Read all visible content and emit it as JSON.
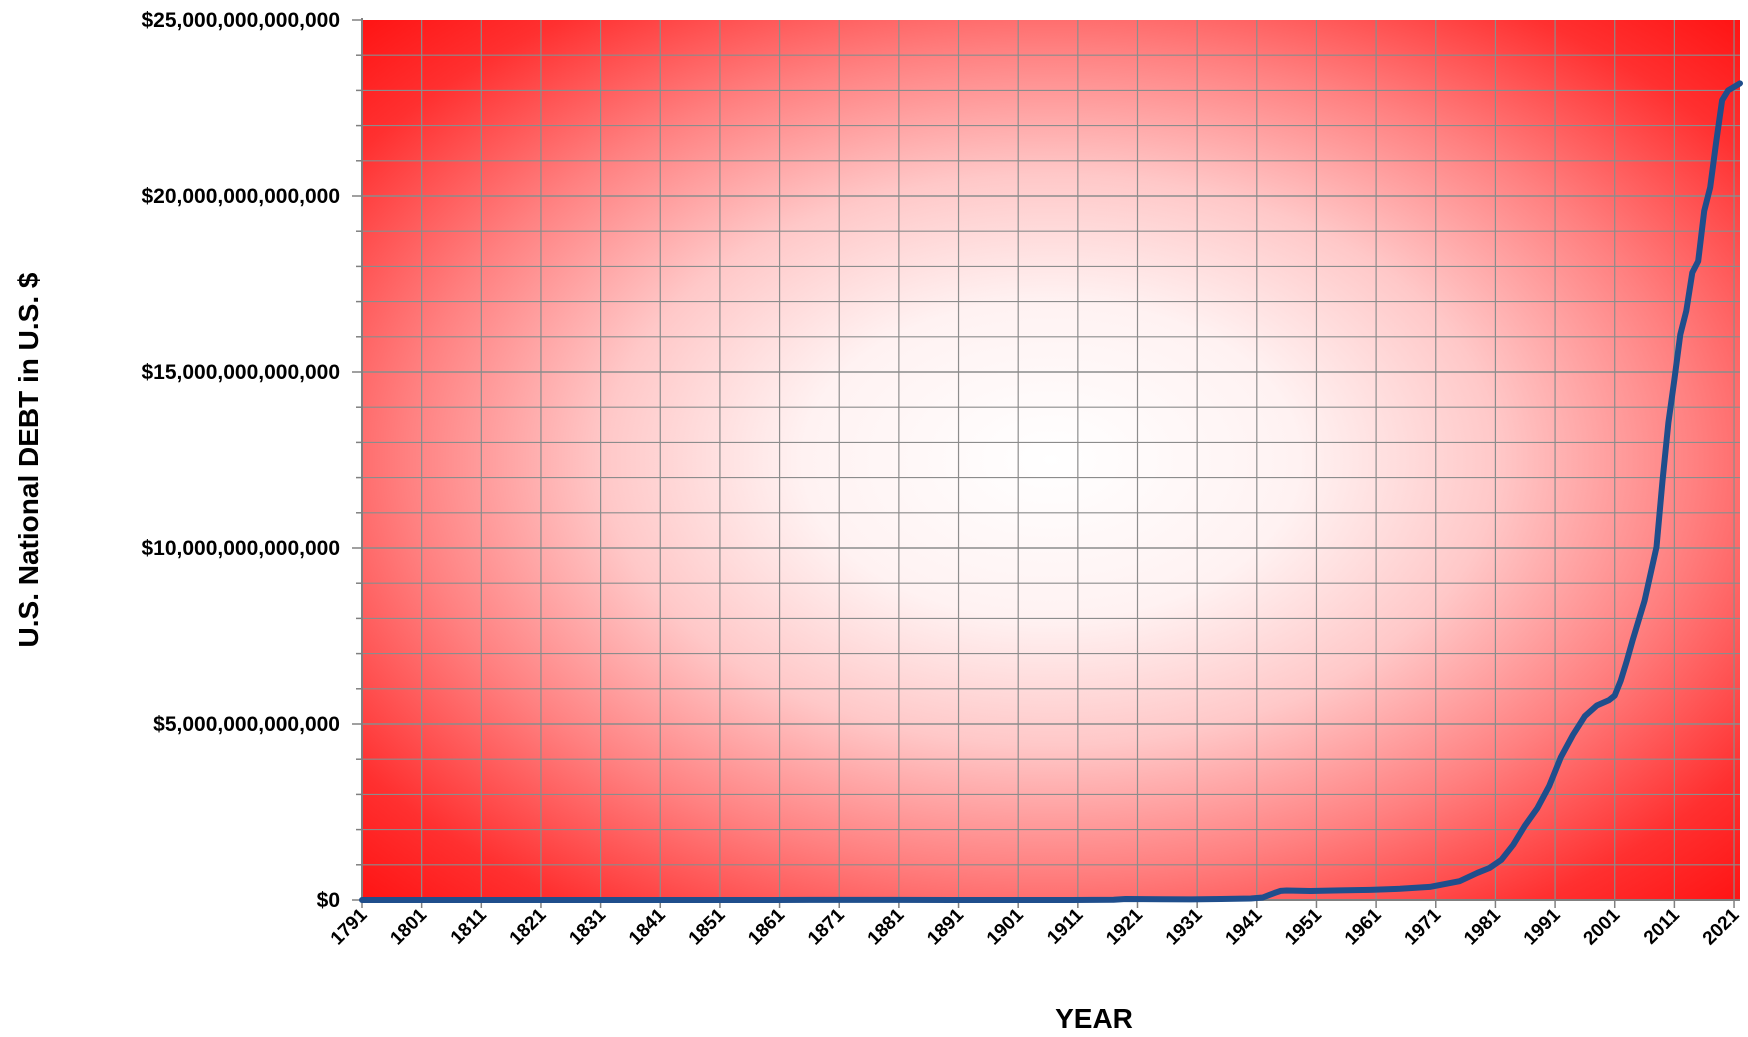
{
  "chart_data": {
    "type": "line",
    "xlabel": "YEAR",
    "ylabel": "U.S. National DEBT in U.S. $",
    "xlim": [
      1791,
      2022
    ],
    "ylim": [
      0,
      25000000000000
    ],
    "y_ticks": [
      0,
      5000000000000,
      10000000000000,
      15000000000000,
      20000000000000,
      25000000000000
    ],
    "y_tick_labels": [
      "$0",
      "$5,000,000,000,000",
      "$10,000,000,000,000",
      "$15,000,000,000,000",
      "$20,000,000,000,000",
      "$25,000,000,000,000"
    ],
    "x_tick_labels": [
      "1791",
      "1801",
      "1811",
      "1821",
      "1831",
      "1841",
      "1851",
      "1861",
      "1871",
      "1881",
      "1891",
      "1901",
      "1911",
      "1921",
      "1931",
      "1941",
      "1951",
      "1961",
      "1971",
      "1981",
      "1991",
      "2001",
      "2011",
      "2021"
    ],
    "grid": true,
    "background": "radial gradient: white center to red edges",
    "colors": {
      "line": "#1f4e8c",
      "bg_center": "#ffffff",
      "bg_edge": "#ff1a1a",
      "grid": "#8c8c8c"
    },
    "series": [
      {
        "x": [
          1791,
          1800,
          1810,
          1820,
          1830,
          1840,
          1850,
          1860,
          1866,
          1870,
          1880,
          1890,
          1900,
          1910,
          1917,
          1919,
          1925,
          1930,
          1935,
          1940,
          1942,
          1943,
          1944,
          1945,
          1946,
          1950,
          1955,
          1960,
          1965,
          1970,
          1975,
          1978,
          1980,
          1982,
          1984,
          1986,
          1988,
          1990,
          1992,
          1994,
          1996,
          1998,
          2000,
          2001,
          2002,
          2003,
          2004,
          2006,
          2008,
          2009,
          2010,
          2011,
          2012,
          2013,
          2014,
          2015,
          2016,
          2017,
          2018,
          2019,
          2020,
          2021,
          2022
        ],
        "y": [
          75000000,
          83000000,
          53000000,
          91000000,
          49000000,
          3600000,
          63000000,
          65000000,
          2750000000,
          2400000000,
          2100000000,
          1100000000,
          1300000000,
          1100000000,
          5700000000,
          27000000000,
          21000000000,
          16000000000,
          29000000000,
          43000000000,
          72000000000,
          137000000000,
          201000000000,
          259000000000,
          269000000000,
          257000000000,
          274000000000,
          286000000000,
          317000000000,
          371000000000,
          533000000000,
          772000000000,
          908000000000,
          1142000000000,
          1572000000000,
          2125000000000,
          2602000000000,
          3233000000000,
          4065000000000,
          4693000000000,
          5225000000000,
          5526000000000,
          5674000000000,
          5807000000000,
          6228000000000,
          6783000000000,
          7379000000000,
          8507000000000,
          10025000000000,
          11910000000000,
          13562000000000,
          14790000000000,
          16066000000000,
          16738000000000,
          17824000000000,
          18151000000000,
          19573000000000,
          20245000000000,
          21516000000000,
          22719000000000,
          23000000000000,
          23100000000000,
          23200000000000
        ]
      }
    ]
  }
}
